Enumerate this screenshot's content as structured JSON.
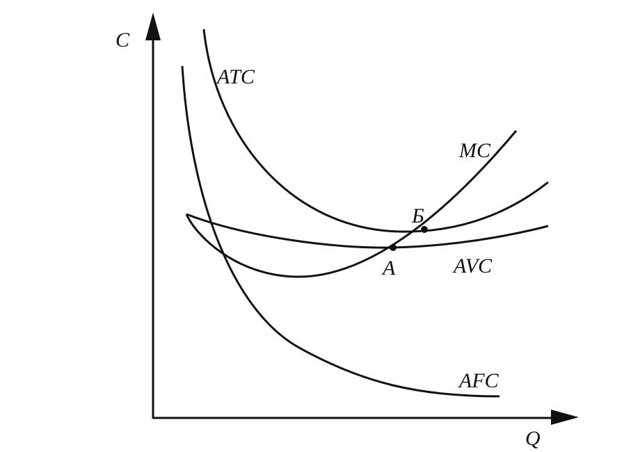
{
  "axes": {
    "y_label": "C",
    "x_label": "Q"
  },
  "curves": {
    "atc": "ATC",
    "mc": "MC",
    "avc": "AVC",
    "afc": "AFC"
  },
  "points": {
    "a": "A",
    "b": "Б"
  }
}
